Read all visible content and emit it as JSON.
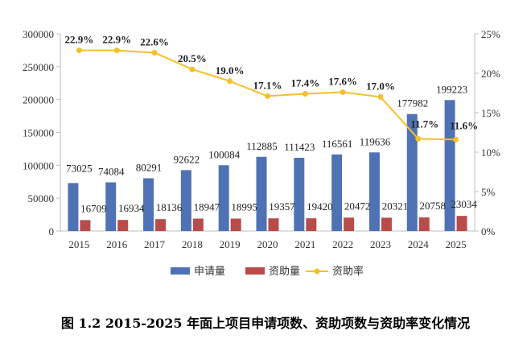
{
  "caption": "图 1.2 2015-2025 年面上项目申请项数、资助项数与资助率变化情况",
  "chart_data": {
    "type": "bar",
    "categories": [
      "2015",
      "2016",
      "2017",
      "2018",
      "2019",
      "2020",
      "2021",
      "2022",
      "2023",
      "2024",
      "2025"
    ],
    "series": [
      {
        "name": "申请量",
        "type": "bar",
        "axis": "left",
        "color": "#4f72b5",
        "values": [
          73025,
          74084,
          80291,
          92622,
          100084,
          112885,
          111423,
          116561,
          119636,
          177982,
          199223
        ]
      },
      {
        "name": "资助量",
        "type": "bar",
        "axis": "left",
        "color": "#b84c4a",
        "values": [
          16709,
          16934,
          18136,
          18947,
          18995,
          19357,
          19420,
          20472,
          20321,
          20758,
          23034
        ]
      },
      {
        "name": "资助率",
        "type": "line",
        "axis": "right",
        "color": "#f5c02a",
        "values": [
          22.9,
          22.9,
          22.6,
          20.5,
          19.0,
          17.1,
          17.4,
          17.6,
          17.0,
          11.7,
          11.6
        ],
        "labels": [
          "22.9%",
          "22.9%",
          "22.6%",
          "20.5%",
          "19.0%",
          "17.1%",
          "17.4%",
          "17.6%",
          "17.0%",
          "11.7%",
          "11.6%"
        ]
      }
    ],
    "y_left": {
      "min": 0,
      "max": 300000,
      "ticks": [
        0,
        50000,
        100000,
        150000,
        200000,
        250000,
        300000
      ]
    },
    "y_right": {
      "min": 0,
      "max": 25,
      "ticks": [
        "0%",
        "5%",
        "10%",
        "15%",
        "20%",
        "25%"
      ]
    },
    "legend_position": "bottom",
    "grid": false
  }
}
